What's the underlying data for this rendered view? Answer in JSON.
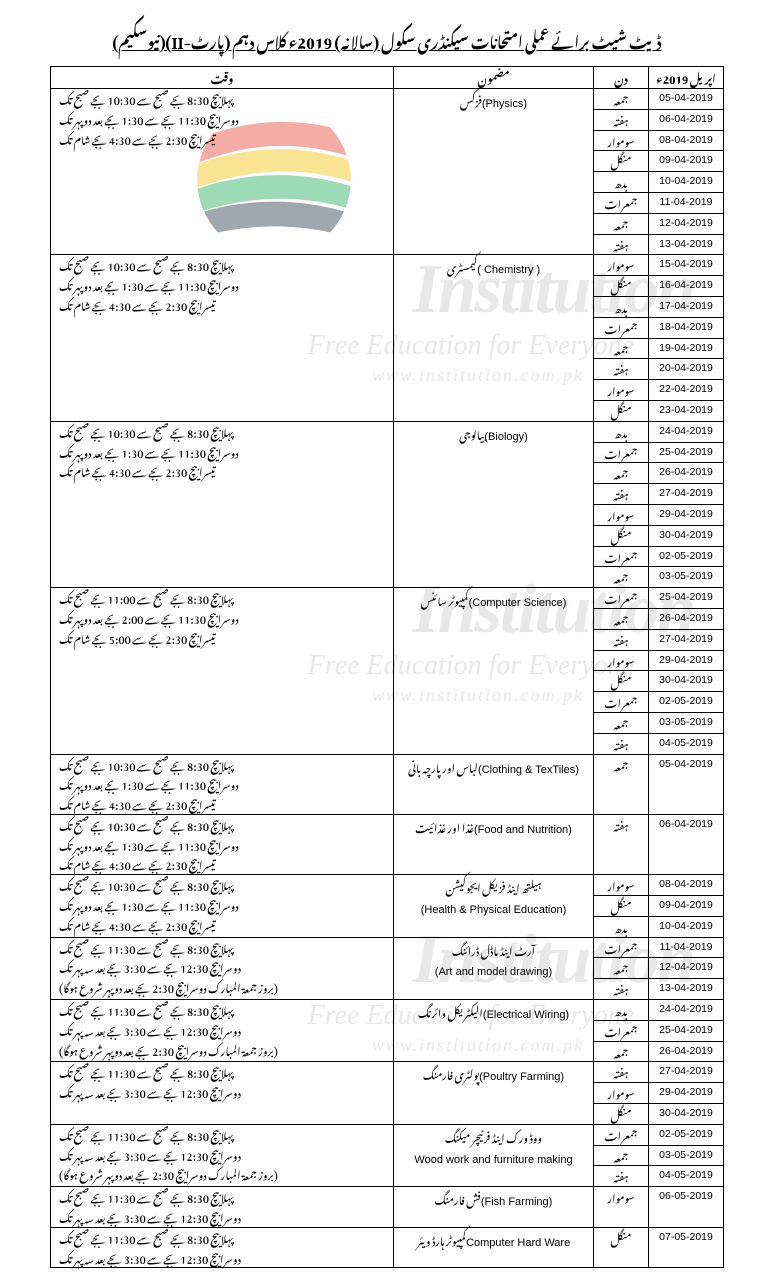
{
  "title": "ڈیٹ شیٹ برائے عملی امتحانات سیکنڈری سکول (سالانہ) 2019ء کلاس دہم (پارٹ-II)(نیوسکیم)",
  "month_header": "اپریل 2019ء",
  "headers": {
    "date": "",
    "day": "دن",
    "subject": "مضمون",
    "time": "وقت"
  },
  "watermark_big": "Institution",
  "watermark_sub": "Free Education for Everyone",
  "watermark_url": "www.institution.com.pk",
  "timings_std": [
    "پہلا بیچ 8:30 بجے صبح سے 10:30 بجے صبح تک",
    "دوسرا بیچ 11:30 بجے سے 1:30 بجے بعد دوپہر تک",
    "تیسرا بیچ 2:30 بجے سے 4:30 بجے شام تک"
  ],
  "timings_cs": [
    "پہلا بیچ 8:30 بجے صبح سے 11:00 بجے صبح تک",
    "دوسرا بیچ 11:30 بجے سے 2:00 بجے بعد دوپہر تک",
    "تیسرا بیچ 2:30 بجے سے 5:00 بجے شام تک"
  ],
  "timings_2batch": [
    "پہلا بیچ 8:30 بجے صبح سے 11:30 بجے صبح تک",
    "دوسرا بیچ 12:30 بجے سے 3:30 بجے بعد سہ پہر تک"
  ],
  "timings_2batch_friday": [
    "پہلا بیچ 8:30 بجے صبح سے 11:30 بجے صبح تک",
    "دوسرا بیچ 12:30 بجے سے 3:30 بجے بعد سہ پہر تک",
    "(بروز جمعۃ المبارک دوسرا بیچ 2:30 بجے بعد دوپہر شروع ہوگا)"
  ],
  "groups": [
    {
      "subject_en": "(Physics)",
      "subject_ur": "فزکس",
      "timing_key": "timings_std",
      "rows": [
        {
          "date": "05-04-2019",
          "day": "جمعہ"
        },
        {
          "date": "06-04-2019",
          "day": "ہفتہ"
        },
        {
          "date": "08-04-2019",
          "day": "سوموار"
        },
        {
          "date": "09-04-2019",
          "day": "منگل"
        },
        {
          "date": "10-04-2019",
          "day": "بدھ"
        },
        {
          "date": "11-04-2019",
          "day": "جمعرات"
        },
        {
          "date": "12-04-2019",
          "day": "جمعہ"
        },
        {
          "date": "13-04-2019",
          "day": "ہفتہ"
        }
      ]
    },
    {
      "subject_en": "( Chemistry )",
      "subject_ur": "کیمسٹری",
      "timing_key": "timings_std",
      "rows": [
        {
          "date": "15-04-2019",
          "day": "سوموار"
        },
        {
          "date": "16-04-2019",
          "day": "منگل"
        },
        {
          "date": "17-04-2019",
          "day": "بدھ"
        },
        {
          "date": "18-04-2019",
          "day": "جمعرات"
        },
        {
          "date": "19-04-2019",
          "day": "جمعہ"
        },
        {
          "date": "20-04-2019",
          "day": "ہفتہ"
        },
        {
          "date": "22-04-2019",
          "day": "سوموار"
        },
        {
          "date": "23-04-2019",
          "day": "منگل"
        }
      ]
    },
    {
      "subject_en": "(Biology)",
      "subject_ur": "بیالوجی",
      "timing_key": "timings_std",
      "rows": [
        {
          "date": "24-04-2019",
          "day": "بدھ"
        },
        {
          "date": "25-04-2019",
          "day": "جمعرات"
        },
        {
          "date": "26-04-2019",
          "day": "جمعہ"
        },
        {
          "date": "27-04-2019",
          "day": "ہفتہ"
        },
        {
          "date": "29-04-2019",
          "day": "سوموار"
        },
        {
          "date": "30-04-2019",
          "day": "منگل"
        },
        {
          "date": "02-05-2019",
          "day": "جمعرات"
        },
        {
          "date": "03-05-2019",
          "day": "جمعہ"
        }
      ]
    },
    {
      "subject_en": "(Computer Science)",
      "subject_ur": "کمپیوٹر سائنس",
      "timing_key": "timings_cs",
      "rows": [
        {
          "date": "25-04-2019",
          "day": "جمعرات"
        },
        {
          "date": "26-04-2019",
          "day": "جمعہ"
        },
        {
          "date": "27-04-2019",
          "day": "ہفتہ"
        },
        {
          "date": "29-04-2019",
          "day": "سوموار"
        },
        {
          "date": "30-04-2019",
          "day": "منگل"
        },
        {
          "date": "02-05-2019",
          "day": "جمعرات"
        },
        {
          "date": "03-05-2019",
          "day": "جمعہ"
        },
        {
          "date": "04-05-2019",
          "day": "ہفتہ"
        }
      ]
    },
    {
      "subject_en": "(Clothing & TexTiles)",
      "subject_ur": "لباس اور پارچہ بانی",
      "timing_key": "timings_std",
      "rows": [
        {
          "date": "05-04-2019",
          "day": "جمعہ"
        }
      ]
    },
    {
      "subject_en": "(Food and Nutrition)",
      "subject_ur": "غذا اور غذائیت",
      "timing_key": "timings_std",
      "rows": [
        {
          "date": "06-04-2019",
          "day": "ہفتہ"
        }
      ]
    },
    {
      "subject_en2": "(Health & Physical Education)",
      "subject_ur": "ہیلتھ اینڈ فزیکل ایجوکیشن",
      "timing_key": "timings_std",
      "rows": [
        {
          "date": "08-04-2019",
          "day": "سوموار"
        },
        {
          "date": "09-04-2019",
          "day": "منگل"
        },
        {
          "date": "10-04-2019",
          "day": "بدھ"
        }
      ]
    },
    {
      "subject_en2": "(Art and model drawing)",
      "subject_ur": "آرٹ اینڈ ماڈل ڈرائنگ",
      "timing_key": "timings_2batch_friday",
      "rows": [
        {
          "date": "11-04-2019",
          "day": "جمعرات"
        },
        {
          "date": "12-04-2019",
          "day": "جمعہ"
        },
        {
          "date": "13-04-2019",
          "day": "ہفتہ"
        }
      ]
    },
    {
      "subject_en": "(Electrical Wiring)",
      "subject_ur": "الیکٹریکل وائرنگ",
      "timing_key": "timings_2batch_friday",
      "rows": [
        {
          "date": "24-04-2019",
          "day": "بدھ"
        },
        {
          "date": "25-04-2019",
          "day": "جمعرات"
        },
        {
          "date": "26-04-2019",
          "day": "جمعہ"
        }
      ]
    },
    {
      "subject_en": "(Poultry Farming)",
      "subject_ur": "پولٹری فارمنگ",
      "timing_key": "timings_2batch",
      "rows": [
        {
          "date": "27-04-2019",
          "day": "ہفتہ"
        },
        {
          "date": "29-04-2019",
          "day": "سوموار"
        },
        {
          "date": "30-04-2019",
          "day": "منگل"
        }
      ]
    },
    {
      "subject_en2": "Wood work and furniture making",
      "subject_ur": "ووڈ ورک اینڈ فرنیچر میکنگ",
      "timing_key": "timings_2batch_friday",
      "rows": [
        {
          "date": "02-05-2019",
          "day": "جمعرات"
        },
        {
          "date": "03-05-2019",
          "day": "جمعہ"
        },
        {
          "date": "04-05-2019",
          "day": "ہفتہ"
        }
      ]
    },
    {
      "subject_en": "(Fish Farming)",
      "subject_ur": "فش فارمنگ",
      "timing_key": "timings_2batch",
      "rows": [
        {
          "date": "06-05-2019",
          "day": "سوموار"
        }
      ]
    },
    {
      "subject_en": "Computer Hard Ware",
      "subject_ur": "کمپیوٹر ہارڈ ویئر",
      "timing_key": "timings_2batch",
      "rows": [
        {
          "date": "07-05-2019",
          "day": "منگل"
        }
      ]
    }
  ]
}
